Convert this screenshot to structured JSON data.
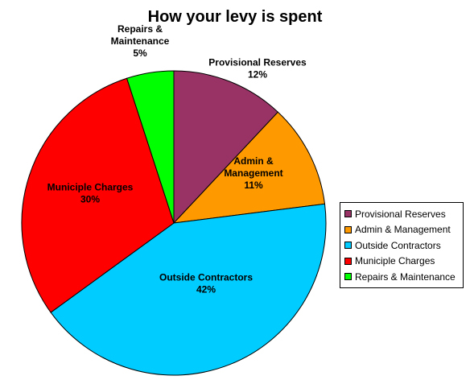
{
  "chart_data": {
    "type": "pie",
    "title": "How your levy is spent",
    "slices": [
      {
        "name": "Provisional Reserves",
        "value": 12,
        "label": [
          "Provisional Reserves",
          "12%"
        ],
        "color": "#993366"
      },
      {
        "name": "Admin & Management",
        "value": 11,
        "label": [
          "Admin &",
          "Management",
          "11%"
        ],
        "color": "#ff9900"
      },
      {
        "name": "Outside Contractors",
        "value": 42,
        "label": [
          "Outside Contractors",
          "42%"
        ],
        "color": "#00ccff"
      },
      {
        "name": "Municiple Charges",
        "value": 30,
        "label": [
          "Municiple Charges",
          "30%"
        ],
        "color": "#ff0000"
      },
      {
        "name": "Repairs & Maintenance",
        "value": 5,
        "label": [
          "Repairs &",
          "Maintenance",
          "5%"
        ],
        "color": "#00ff00"
      }
    ],
    "legend_position": "right"
  }
}
